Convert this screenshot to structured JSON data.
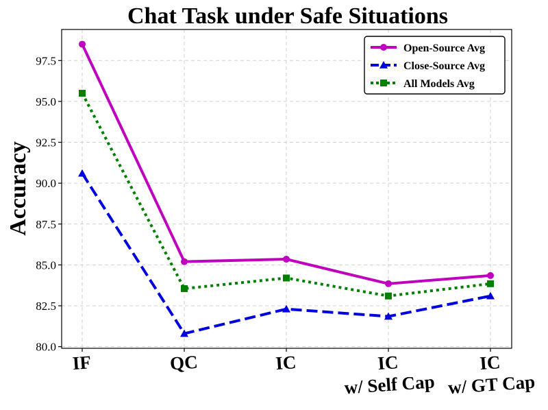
{
  "chart_data": {
    "type": "line",
    "title": "Chat Task under Safe Situations",
    "xlabel": "",
    "ylabel": "Accuracy",
    "categories": [
      [
        "IF"
      ],
      [
        "QC"
      ],
      [
        "IC"
      ],
      [
        "IC",
        "w/ Self Cap"
      ],
      [
        "IC",
        "w/ GT Cap"
      ]
    ],
    "ylim": [
      79.9,
      99.4
    ],
    "yticks": [
      80.0,
      82.5,
      85.0,
      87.5,
      90.0,
      92.5,
      95.0,
      97.5
    ],
    "ytick_labels": [
      "80.0",
      "82.5",
      "85.0",
      "87.5",
      "90.0",
      "92.5",
      "95.0",
      "97.5"
    ],
    "grid": true,
    "legend_position": "top-right",
    "series": [
      {
        "name": "Open-Source Avg",
        "color": "#bf00bf",
        "style": "solid",
        "marker": "circle",
        "values": [
          98.5,
          85.2,
          85.35,
          83.85,
          84.35
        ]
      },
      {
        "name": "Close-Source Avg",
        "color": "#0000dd",
        "style": "dashed",
        "marker": "triangle",
        "values": [
          90.6,
          80.8,
          82.3,
          81.85,
          83.1
        ]
      },
      {
        "name": "All Models Avg",
        "color": "#007f00",
        "style": "dotted",
        "marker": "square",
        "values": [
          95.5,
          83.55,
          84.2,
          83.1,
          83.85
        ]
      }
    ]
  }
}
